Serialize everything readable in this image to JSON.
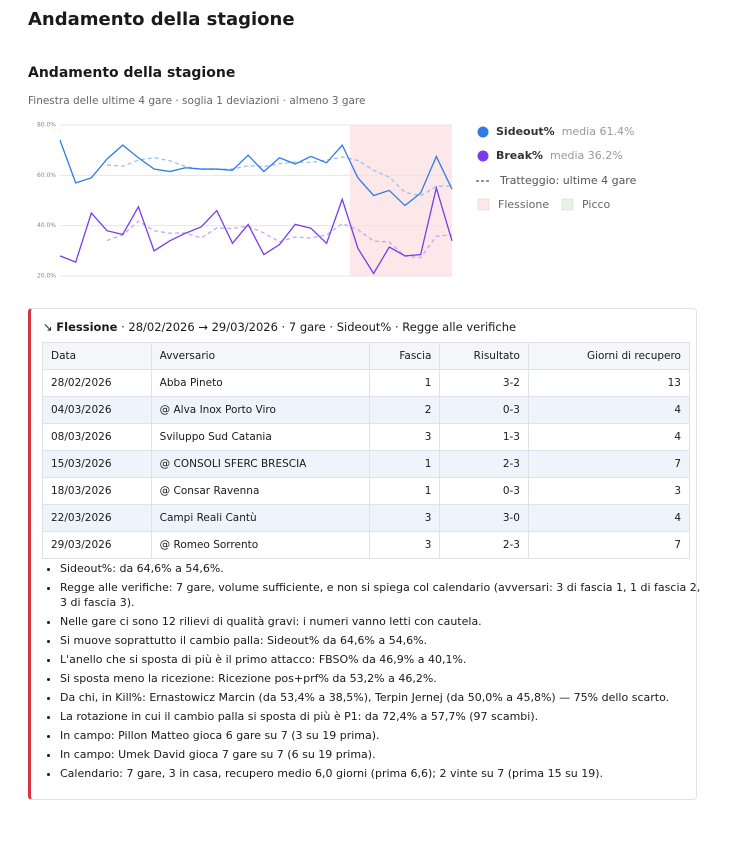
{
  "header": {
    "title": "Andamento della stagione"
  },
  "chart_data": {
    "type": "line",
    "title": "Andamento della stagione",
    "subtitle": "Finestra delle ultime 4 gare · soglia 1 deviazioni · almeno 3 gare",
    "ylim": [
      20,
      80
    ],
    "yticks": [
      {
        "value": 20,
        "label": "20.0%"
      },
      {
        "value": 40,
        "label": "40.0%"
      },
      {
        "value": 60,
        "label": "60.0%"
      },
      {
        "value": 80,
        "label": "80.0%"
      }
    ],
    "series": [
      {
        "name": "Sideout%",
        "mean_label": "media 61.4%",
        "color": "#2f7be8",
        "trend_color": "#9ec0f2",
        "values": [
          74,
          57,
          59,
          66.5,
          72,
          67,
          62.5,
          61.5,
          63,
          62.5,
          62.5,
          62,
          68,
          61.5,
          67,
          64.5,
          67.5,
          65,
          72,
          59,
          52,
          54,
          48,
          53,
          67.5,
          54.5
        ],
        "trend_values": [
          null,
          null,
          null,
          64.1,
          63.6,
          66.1,
          67,
          65.8,
          63.5,
          62.4,
          62.4,
          62.5,
          63.8,
          63.5,
          64.6,
          65.3,
          65.1,
          66,
          67.3,
          65.9,
          62,
          59.3,
          53.3,
          51.8,
          55.6,
          55.8
        ]
      },
      {
        "name": "Break%",
        "mean_label": "media 36.2%",
        "color": "#7c3aed",
        "trend_color": "#c4a8f3",
        "values": [
          28,
          25.5,
          45,
          38,
          36.5,
          47.5,
          30,
          34,
          37,
          39.5,
          46,
          33,
          40.5,
          28.5,
          32.5,
          40.5,
          39,
          33,
          50.5,
          31,
          21,
          31.5,
          28,
          28.5,
          55,
          34
        ],
        "trend_values": [
          null,
          null,
          null,
          34.1,
          36.3,
          41.8,
          38,
          37,
          37.1,
          35.1,
          39.1,
          38.9,
          39.8,
          37.1,
          33.6,
          35.5,
          35.1,
          36.3,
          40.8,
          38.4,
          33.9,
          33.5,
          27.9,
          27.3,
          35.8,
          36.4
        ]
      }
    ],
    "trend_label": "Tratteggio: ultime 4 gare",
    "bands": [
      {
        "label": "Flessione",
        "color": "#fce8e8",
        "start": 19,
        "end": 25
      },
      {
        "label": "Picco",
        "color": "#e4f5e7"
      }
    ],
    "grid": true
  },
  "section": {
    "icon": "↘",
    "kind": "Flessione",
    "summary": "· 28/02/2026 → 29/03/2026 · 7 gare · Sideout% · Regge alle verifiche",
    "table": {
      "headers": [
        "Data",
        "Avversario",
        "Fascia",
        "Risultato",
        "Giorni di recupero"
      ],
      "rows": [
        [
          "28/02/2026",
          "Abba Pineto",
          "1",
          "3-2",
          "13"
        ],
        [
          "04/03/2026",
          "@ Alva Inox Porto Viro",
          "2",
          "0-3",
          "4"
        ],
        [
          "08/03/2026",
          "Sviluppo Sud Catania",
          "3",
          "1-3",
          "4"
        ],
        [
          "15/03/2026",
          "@ CONSOLI SFERC BRESCIA",
          "1",
          "2-3",
          "7"
        ],
        [
          "18/03/2026",
          "@ Consar Ravenna",
          "1",
          "0-3",
          "3"
        ],
        [
          "22/03/2026",
          "Campi Reali Cantù",
          "3",
          "3-0",
          "4"
        ],
        [
          "29/03/2026",
          "@ Romeo Sorrento",
          "3",
          "2-3",
          "7"
        ]
      ]
    },
    "notes": [
      "Sideout%: da 64,6% a 54,6%.",
      "Regge alle verifiche: 7 gare, volume sufficiente, e non si spiega col calendario (avversari: 3 di fascia 1, 1 di fascia 2, 3 di fascia 3).",
      "Nelle gare ci sono 12 rilievi di qualità gravi: i numeri vanno letti con cautela.",
      "Si muove soprattutto il cambio palla: Sideout% da 64,6% a 54,6%.",
      "L'anello che si sposta di più è il primo attacco: FBSO% da 46,9% a 40,1%.",
      "Si sposta meno la ricezione: Ricezione pos+prf% da 53,2% a 46,2%.",
      "Da chi, in Kill%: Ernastowicz Marcin (da 53,4% a 38,5%), Terpin Jernej (da 50,0% a 45,8%) — 75% dello scarto.",
      "La rotazione in cui il cambio palla si sposta di più è P1: da 72,4% a 57,7% (97 scambi).",
      "In campo: Pillon Matteo gioca 6 gare su 7 (3 su 19 prima).",
      "In campo: Umek David gioca 7 gare su 7 (6 su 19 prima).",
      "Calendario: 7 gare, 3 in casa, recupero medio 6,0 giorni (prima 6,6); 2 vinte su 7 (prima 15 su 19)."
    ]
  }
}
